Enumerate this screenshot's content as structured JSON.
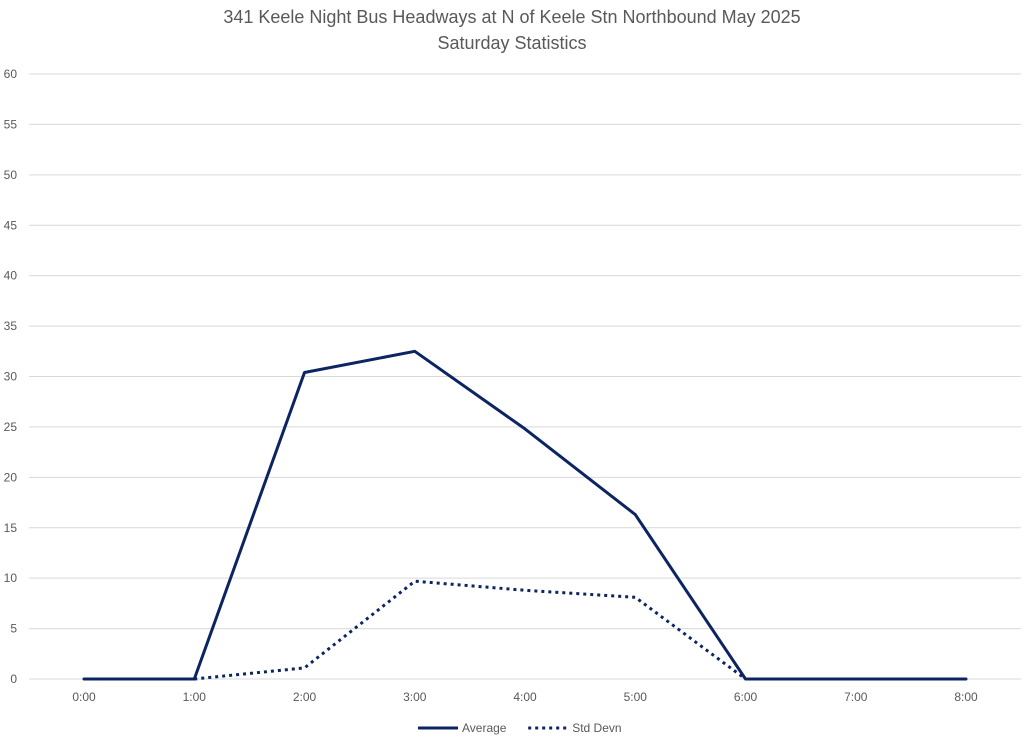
{
  "chart_data": {
    "type": "line",
    "title": "341 Keele Night Bus Headways at N of Keele Stn Northbound May 2025",
    "subtitle": "Saturday Statistics",
    "xlabel": "",
    "ylabel": "",
    "categories": [
      "0:00",
      "1:00",
      "2:00",
      "3:00",
      "4:00",
      "5:00",
      "6:00",
      "7:00",
      "8:00"
    ],
    "ylim": [
      0,
      60
    ],
    "yticks": [
      0,
      5,
      10,
      15,
      20,
      25,
      30,
      35,
      40,
      45,
      50,
      55,
      60
    ],
    "grid": true,
    "legend_position": "bottom",
    "series": [
      {
        "name": "Average",
        "style": "solid",
        "color": "#0c2461",
        "values": [
          0,
          0,
          30.4,
          32.5,
          24.8,
          16.3,
          0,
          0,
          0
        ]
      },
      {
        "name": "Std Devn",
        "style": "dotted",
        "color": "#0c2461",
        "values": [
          null,
          0,
          1.1,
          9.7,
          8.8,
          8.1,
          0,
          null,
          null
        ]
      }
    ]
  }
}
